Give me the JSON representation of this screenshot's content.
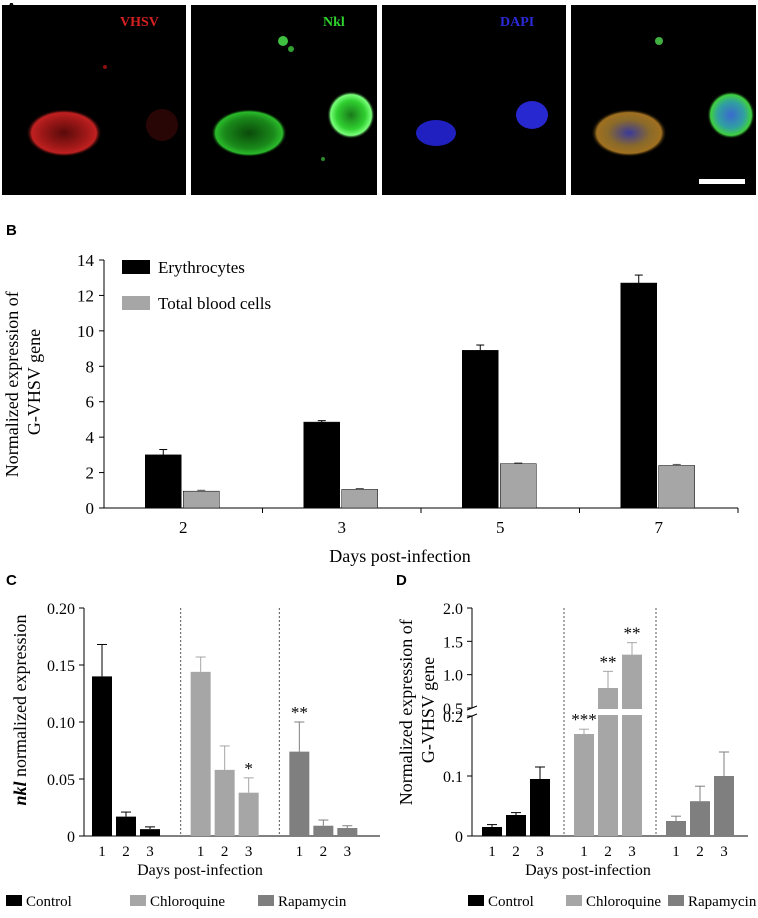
{
  "panel_letters": {
    "a": "A",
    "b": "B",
    "c": "C",
    "d": "D"
  },
  "microscopy": {
    "panels": [
      {
        "label": "VHSV",
        "color": "#d42020"
      },
      {
        "label": "Nkl",
        "color": "#2ed12e"
      },
      {
        "label": "DAPI",
        "color": "#2a2ad8"
      },
      {
        "label": "",
        "color": "#ffffff"
      }
    ]
  },
  "colors": {
    "black": "#000000",
    "light_gray": "#a6a6a6",
    "dark_gray": "#7f7f7f"
  },
  "chart_data": [
    {
      "id": "B",
      "type": "bar",
      "categories": [
        "2",
        "3",
        "5",
        "7"
      ],
      "series": [
        {
          "name": "Erythrocytes",
          "color": "#000000",
          "values": [
            3.0,
            4.85,
            8.9,
            12.7
          ],
          "errors": [
            0.3,
            0.08,
            0.3,
            0.45
          ]
        },
        {
          "name": "Total blood cells",
          "color": "#a6a6a6",
          "values": [
            0.95,
            1.05,
            2.5,
            2.4
          ],
          "errors": [
            0.05,
            0.05,
            0.04,
            0.06
          ]
        }
      ],
      "xlabel": "Days post-infection",
      "ylabel": "Normalized expression of G-VHSV gene",
      "ylim": [
        0,
        14
      ],
      "yticks": [
        "0",
        "2",
        "4",
        "6",
        "8",
        "10",
        "12",
        "14"
      ],
      "legend": "top-left"
    },
    {
      "id": "C",
      "type": "bar",
      "groups": [
        {
          "name": "Control",
          "color": "#000000",
          "categories": [
            "1",
            "2",
            "3"
          ],
          "values": [
            0.14,
            0.017,
            0.006
          ],
          "errors": [
            0.028,
            0.004,
            0.002
          ],
          "annotations": [
            "",
            "",
            ""
          ]
        },
        {
          "name": "Chloroquine",
          "color": "#a6a6a6",
          "categories": [
            "1",
            "2",
            "3"
          ],
          "values": [
            0.144,
            0.058,
            0.038
          ],
          "errors": [
            0.013,
            0.021,
            0.013
          ],
          "annotations": [
            "",
            "",
            "*"
          ]
        },
        {
          "name": "Rapamycin",
          "color": "#7f7f7f",
          "categories": [
            "1",
            "2",
            "3"
          ],
          "values": [
            0.074,
            0.009,
            0.007
          ],
          "errors": [
            0.026,
            0.005,
            0.002
          ],
          "annotations": [
            "**",
            "",
            ""
          ]
        }
      ],
      "xlabel": "Days post-infection",
      "ylabel_italic": "nkl",
      "ylabel": "normalized expression",
      "ylim": [
        0,
        0.2
      ],
      "yticks": [
        "0",
        "0.05",
        "0.10",
        "0.15",
        "0.20"
      ],
      "legend": "bottom"
    },
    {
      "id": "D",
      "type": "bar",
      "broken_axis": true,
      "groups": [
        {
          "name": "Control",
          "color": "#000000",
          "categories": [
            "1",
            "2",
            "3"
          ],
          "values": [
            0.015,
            0.035,
            0.095
          ],
          "errors": [
            0.004,
            0.004,
            0.02
          ],
          "annotations": [
            "",
            "",
            ""
          ]
        },
        {
          "name": "Chloroquine",
          "color": "#a6a6a6",
          "categories": [
            "1",
            "2",
            "3"
          ],
          "values": [
            0.17,
            0.8,
            1.3
          ],
          "errors": [
            0.008,
            0.25,
            0.18
          ],
          "annotations": [
            "***",
            "**",
            "**"
          ]
        },
        {
          "name": "Rapamycin",
          "color": "#7f7f7f",
          "categories": [
            "1",
            "2",
            "3"
          ],
          "values": [
            0.025,
            0.058,
            0.1
          ],
          "errors": [
            0.008,
            0.025,
            0.04
          ],
          "annotations": [
            "",
            "",
            ""
          ]
        }
      ],
      "xlabel": "Days post-infection",
      "ylabel": "Normalized expression of G-VHSV gene",
      "yticks_lower": [
        "0",
        "0.1",
        "0.2"
      ],
      "yticks_upper": [
        "0.5",
        "1.0",
        "1.5",
        "2.0"
      ],
      "legend": "bottom"
    }
  ]
}
